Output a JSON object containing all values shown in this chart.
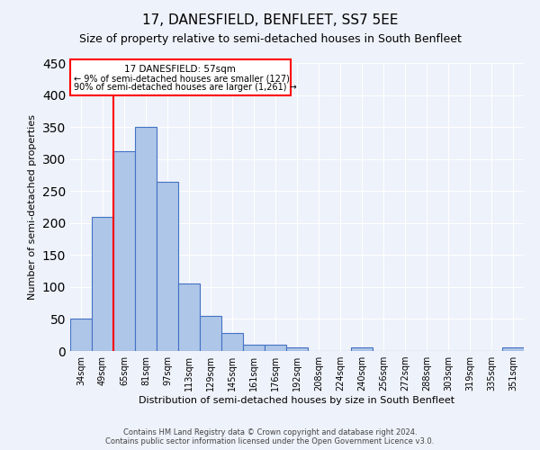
{
  "title": "17, DANESFIELD, BENFLEET, SS7 5EE",
  "subtitle": "Size of property relative to semi-detached houses in South Benfleet",
  "xlabel": "Distribution of semi-detached houses by size in South Benfleet",
  "ylabel": "Number of semi-detached properties",
  "categories": [
    "34sqm",
    "49sqm",
    "65sqm",
    "81sqm",
    "97sqm",
    "113sqm",
    "129sqm",
    "145sqm",
    "161sqm",
    "176sqm",
    "192sqm",
    "208sqm",
    "224sqm",
    "240sqm",
    "256sqm",
    "272sqm",
    "288sqm",
    "303sqm",
    "319sqm",
    "335sqm",
    "351sqm"
  ],
  "values": [
    50,
    210,
    312,
    350,
    265,
    105,
    55,
    28,
    10,
    10,
    5,
    0,
    0,
    5,
    0,
    0,
    0,
    0,
    0,
    0,
    5
  ],
  "bar_color": "#aec6e8",
  "bar_edge_color": "#4472c4",
  "ylim": [
    0,
    450
  ],
  "yticks": [
    0,
    50,
    100,
    150,
    200,
    250,
    300,
    350,
    400,
    450
  ],
  "property_line_x": 1.5,
  "annotation_title": "17 DANESFIELD: 57sqm",
  "annotation_line1": "← 9% of semi-detached houses are smaller (127)",
  "annotation_line2": "90% of semi-detached houses are larger (1,261) →",
  "footer_line1": "Contains HM Land Registry data © Crown copyright and database right 2024.",
  "footer_line2": "Contains public sector information licensed under the Open Government Licence v3.0.",
  "background_color": "#eef2fa",
  "grid_color": "#ffffff",
  "title_fontsize": 11,
  "subtitle_fontsize": 9,
  "axis_label_fontsize": 8,
  "tick_fontsize": 7,
  "footer_fontsize": 6
}
